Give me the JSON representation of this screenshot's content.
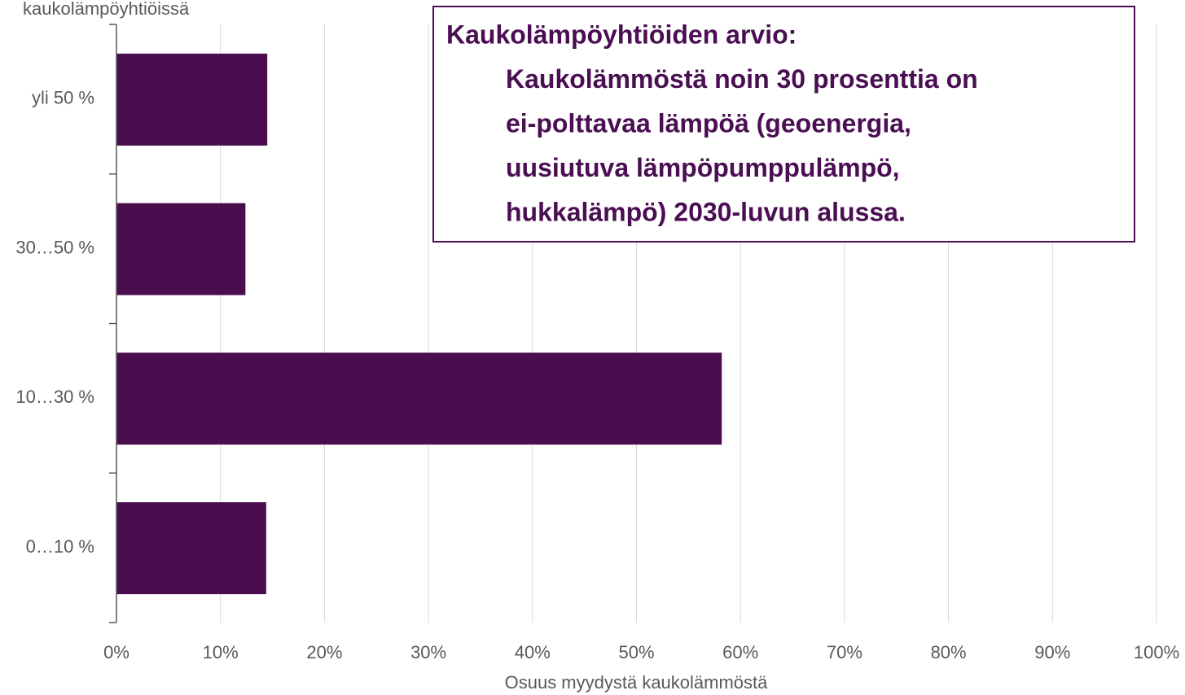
{
  "chart_data": {
    "type": "bar",
    "orientation": "horizontal",
    "y_label": "kaukolämpöyhtiöissä",
    "x_label": "Osuus myydystä kaukolämmöstä",
    "annotation": [
      "Kaukolämpöyhtiöiden arvio:",
      "Kaukolämmöstä noin 30 prosenttia on",
      "ei-polttavaa lämpöä (geoenergia,",
      "uusiutuva lämpöpumppulämpö,",
      "hukkalämpö) 2030-luvun alussa."
    ],
    "categories": [
      "yli 50 %",
      "30…50 %",
      "10…30 %",
      "0…10 %"
    ],
    "values": [
      14.5,
      12.4,
      58.2,
      14.4
    ],
    "color": "#4a0e4e",
    "xlim": [
      0,
      100
    ],
    "xticks": [
      {
        "value": 0,
        "label": "0%"
      },
      {
        "value": 10,
        "label": "10%"
      },
      {
        "value": 20,
        "label": "20%"
      },
      {
        "value": 30,
        "label": "30%"
      },
      {
        "value": 40,
        "label": "40%"
      },
      {
        "value": 50,
        "label": "50%"
      },
      {
        "value": 60,
        "label": "60%"
      },
      {
        "value": 70,
        "label": "70%"
      },
      {
        "value": 80,
        "label": "80%"
      },
      {
        "value": 90,
        "label": "90%"
      },
      {
        "value": 100,
        "label": "100%"
      }
    ],
    "grid": true
  }
}
